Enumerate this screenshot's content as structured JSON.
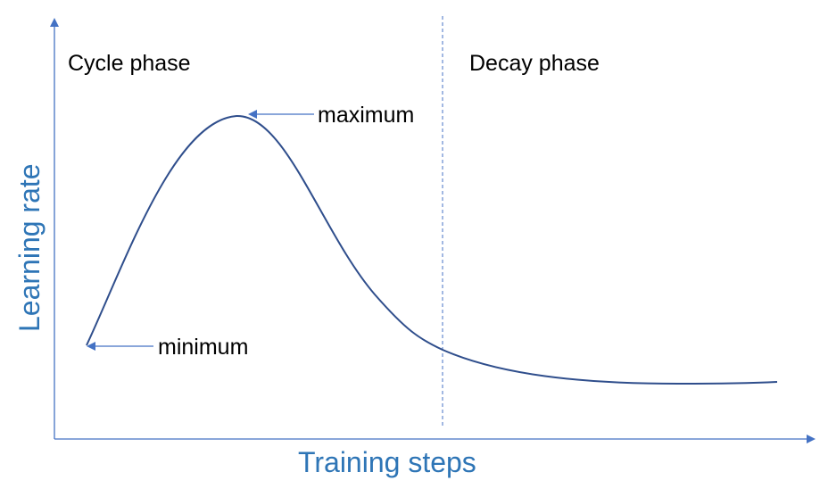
{
  "diagram": {
    "x_axis_label": "Training steps",
    "y_axis_label": "Learning rate",
    "phase_left_label": "Cycle phase",
    "phase_right_label": "Decay phase",
    "maximum_label": "maximum",
    "minimum_label": "minimum"
  },
  "colors": {
    "axis": "#4472C4",
    "curve": "#2F4E8C",
    "axis_label": "#2E75B6",
    "annotation": "#000000"
  }
}
